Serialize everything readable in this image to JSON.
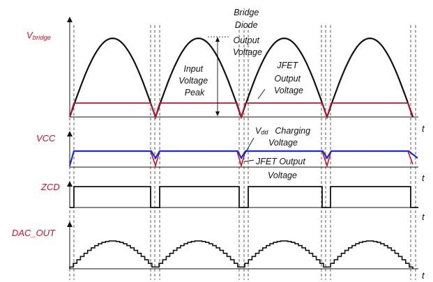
{
  "colors": {
    "red": "#c8102e",
    "blue": "#1f2bd1",
    "black": "#111111"
  },
  "signals": {
    "vbridge": {
      "main": "V",
      "sub": "bridge"
    },
    "vcc": "VCC",
    "zcd": "ZCD",
    "dac": "DAC_OUT"
  },
  "axis_label": "t",
  "annotations": {
    "bridge": [
      "Bridge",
      "Diode",
      "Output",
      "Voltage"
    ],
    "input_peak": [
      "Input",
      "Voltage",
      "Peak"
    ],
    "jfet_top": [
      "JFET",
      "Output",
      "Voltage"
    ],
    "vdd_main": "V",
    "vdd_sub": "dd",
    "vdd_rest": "Charging",
    "vdd_line2": "Voltage",
    "jfet_mid": [
      "JFET Output",
      "Voltage"
    ]
  }
}
